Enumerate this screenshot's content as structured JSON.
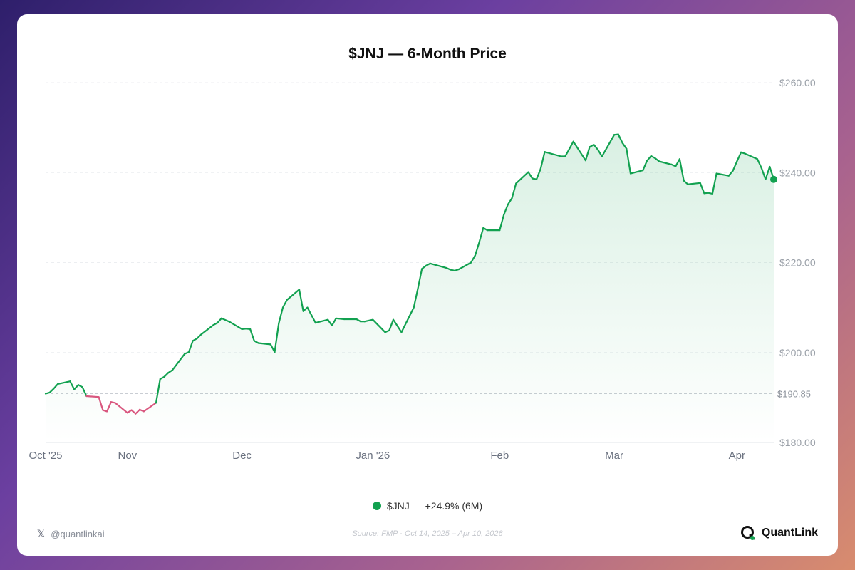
{
  "chart_data": {
    "type": "line",
    "title": "$JNJ — 6-Month Price",
    "ylim": [
      180,
      260
    ],
    "y_ticks": [
      "$180.00",
      "$200.00",
      "$220.00",
      "$240.00",
      "$260.00"
    ],
    "baseline": {
      "value": 190.85,
      "label": "$190.85"
    },
    "x_tick_labels": [
      {
        "label": "Oct '25",
        "date": "2025-10-14"
      },
      {
        "label": "Nov",
        "date": "2025-11-03"
      },
      {
        "label": "Dec",
        "date": "2025-12-01"
      },
      {
        "label": "Jan '26",
        "date": "2026-01-02"
      },
      {
        "label": "Feb",
        "date": "2026-02-02"
      },
      {
        "label": "Mar",
        "date": "2026-03-02"
      },
      {
        "label": "Apr",
        "date": "2026-04-01"
      }
    ],
    "grid": true,
    "series": [
      {
        "name": "$JNJ — +24.9% (6M)",
        "up_color": "#12a150",
        "down_color": "#d9577f",
        "points": [
          [
            "2025-10-14",
            190.85
          ],
          [
            "2025-10-15",
            191.1
          ],
          [
            "2025-10-16",
            192.0
          ],
          [
            "2025-10-17",
            193.0
          ],
          [
            "2025-10-20",
            193.6
          ],
          [
            "2025-10-21",
            191.8
          ],
          [
            "2025-10-22",
            192.8
          ],
          [
            "2025-10-23",
            192.3
          ],
          [
            "2025-10-24",
            190.3
          ],
          [
            "2025-10-27",
            190.1
          ],
          [
            "2025-10-28",
            187.2
          ],
          [
            "2025-10-29",
            186.9
          ],
          [
            "2025-10-30",
            189.0
          ],
          [
            "2025-10-31",
            188.8
          ],
          [
            "2025-11-03",
            186.6
          ],
          [
            "2025-11-04",
            187.2
          ],
          [
            "2025-11-05",
            186.4
          ],
          [
            "2025-11-06",
            187.3
          ],
          [
            "2025-11-07",
            186.9
          ],
          [
            "2025-11-10",
            188.8
          ],
          [
            "2025-11-11",
            194.1
          ],
          [
            "2025-11-12",
            194.6
          ],
          [
            "2025-11-13",
            195.5
          ],
          [
            "2025-11-14",
            196.1
          ],
          [
            "2025-11-17",
            199.7
          ],
          [
            "2025-11-18",
            200.1
          ],
          [
            "2025-11-19",
            202.6
          ],
          [
            "2025-11-20",
            203.1
          ],
          [
            "2025-11-21",
            204.0
          ],
          [
            "2025-11-24",
            206.1
          ],
          [
            "2025-11-25",
            206.6
          ],
          [
            "2025-11-26",
            207.6
          ],
          [
            "2025-11-28",
            206.8
          ],
          [
            "2025-12-01",
            205.2
          ],
          [
            "2025-12-02",
            205.3
          ],
          [
            "2025-12-03",
            205.2
          ],
          [
            "2025-12-04",
            202.6
          ],
          [
            "2025-12-05",
            202.1
          ],
          [
            "2025-12-08",
            201.8
          ],
          [
            "2025-12-09",
            200.1
          ],
          [
            "2025-12-10",
            206.5
          ],
          [
            "2025-12-11",
            210.0
          ],
          [
            "2025-12-12",
            211.7
          ],
          [
            "2025-12-15",
            214.0
          ],
          [
            "2025-12-16",
            209.2
          ],
          [
            "2025-12-17",
            210.0
          ],
          [
            "2025-12-18",
            208.3
          ],
          [
            "2025-12-19",
            206.6
          ],
          [
            "2025-12-22",
            207.3
          ],
          [
            "2025-12-23",
            206.0
          ],
          [
            "2025-12-24",
            207.6
          ],
          [
            "2025-12-26",
            207.4
          ],
          [
            "2025-12-29",
            207.4
          ],
          [
            "2025-12-30",
            206.9
          ],
          [
            "2025-12-31",
            206.9
          ],
          [
            "2026-01-02",
            207.3
          ],
          [
            "2026-01-05",
            204.5
          ],
          [
            "2026-01-06",
            204.9
          ],
          [
            "2026-01-07",
            207.3
          ],
          [
            "2026-01-08",
            205.9
          ],
          [
            "2026-01-09",
            204.5
          ],
          [
            "2026-01-12",
            210.0
          ],
          [
            "2026-01-13",
            214.2
          ],
          [
            "2026-01-14",
            218.6
          ],
          [
            "2026-01-15",
            219.3
          ],
          [
            "2026-01-16",
            219.8
          ],
          [
            "2026-01-20",
            218.8
          ],
          [
            "2026-01-21",
            218.4
          ],
          [
            "2026-01-22",
            218.2
          ],
          [
            "2026-01-23",
            218.5
          ],
          [
            "2026-01-26",
            220.0
          ],
          [
            "2026-01-27",
            221.6
          ],
          [
            "2026-01-28",
            224.5
          ],
          [
            "2026-01-29",
            227.7
          ],
          [
            "2026-01-30",
            227.2
          ],
          [
            "2026-02-02",
            227.2
          ],
          [
            "2026-02-03",
            230.6
          ],
          [
            "2026-02-04",
            232.9
          ],
          [
            "2026-02-05",
            234.3
          ],
          [
            "2026-02-06",
            237.6
          ],
          [
            "2026-02-09",
            240.1
          ],
          [
            "2026-02-10",
            238.7
          ],
          [
            "2026-02-11",
            238.5
          ],
          [
            "2026-02-12",
            240.8
          ],
          [
            "2026-02-13",
            244.6
          ],
          [
            "2026-02-17",
            243.6
          ],
          [
            "2026-02-18",
            243.6
          ],
          [
            "2026-02-19",
            245.2
          ],
          [
            "2026-02-20",
            246.9
          ],
          [
            "2026-02-23",
            242.7
          ],
          [
            "2026-02-24",
            245.7
          ],
          [
            "2026-02-25",
            246.2
          ],
          [
            "2026-02-26",
            245.1
          ],
          [
            "2026-02-27",
            243.6
          ],
          [
            "2026-03-02",
            248.4
          ],
          [
            "2026-03-03",
            248.5
          ],
          [
            "2026-03-04",
            246.6
          ],
          [
            "2026-03-05",
            245.3
          ],
          [
            "2026-03-06",
            239.8
          ],
          [
            "2026-03-09",
            240.5
          ],
          [
            "2026-03-10",
            242.6
          ],
          [
            "2026-03-11",
            243.7
          ],
          [
            "2026-03-12",
            243.2
          ],
          [
            "2026-03-13",
            242.5
          ],
          [
            "2026-03-16",
            241.8
          ],
          [
            "2026-03-17",
            241.4
          ],
          [
            "2026-03-18",
            243.0
          ],
          [
            "2026-03-19",
            238.2
          ],
          [
            "2026-03-20",
            237.4
          ],
          [
            "2026-03-23",
            237.7
          ],
          [
            "2026-03-24",
            235.4
          ],
          [
            "2026-03-25",
            235.5
          ],
          [
            "2026-03-26",
            235.3
          ],
          [
            "2026-03-27",
            239.8
          ],
          [
            "2026-03-30",
            239.3
          ],
          [
            "2026-03-31",
            240.4
          ],
          [
            "2026-04-01",
            242.5
          ],
          [
            "2026-04-02",
            244.5
          ],
          [
            "2026-04-03",
            244.2
          ],
          [
            "2026-04-06",
            243.0
          ],
          [
            "2026-04-07",
            241.0
          ],
          [
            "2026-04-08",
            238.5
          ],
          [
            "2026-04-09",
            241.3
          ],
          [
            "2026-04-10",
            238.5
          ]
        ]
      }
    ]
  },
  "legend": {
    "label": "$JNJ — +24.9% (6M)",
    "color": "#12a150"
  },
  "footer": {
    "handle": "@quantlinkai",
    "handle_icon": "x-logo-icon",
    "source": "Source: FMP · Oct 14, 2025 – Apr 10, 2026",
    "brand": "QuantLink",
    "brand_icon": "quantlink-logo-icon"
  }
}
